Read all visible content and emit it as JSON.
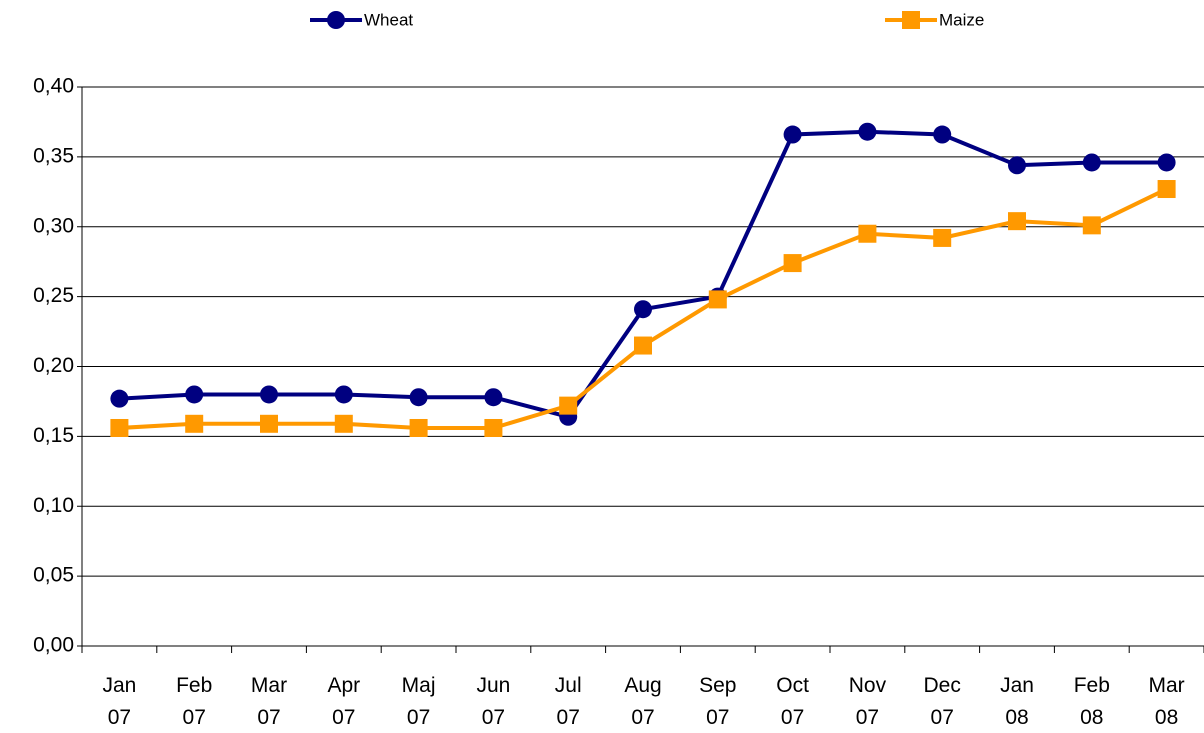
{
  "chart_data": {
    "type": "line",
    "categories": [
      "Jan 07",
      "Feb 07",
      "Mar 07",
      "Apr 07",
      "Maj 07",
      "Jun 07",
      "Jul 07",
      "Aug 07",
      "Sep 07",
      "Oct 07",
      "Nov 07",
      "Dec 07",
      "Jan 08",
      "Feb 08",
      "Mar 08"
    ],
    "series": [
      {
        "name": "Wheat",
        "color": "#000080",
        "marker": "circle",
        "values": [
          0.177,
          0.18,
          0.18,
          0.18,
          0.178,
          0.178,
          0.164,
          0.241,
          0.25,
          0.366,
          0.368,
          0.366,
          0.344,
          0.346,
          0.346
        ]
      },
      {
        "name": "Maize",
        "color": "#ff9900",
        "marker": "square",
        "values": [
          0.156,
          0.159,
          0.159,
          0.159,
          0.156,
          0.156,
          0.172,
          0.215,
          0.248,
          0.274,
          0.295,
          0.292,
          0.304,
          0.301,
          0.327
        ]
      }
    ],
    "ylim": [
      0,
      0.4
    ],
    "yticks": [
      {
        "value": 0,
        "label": "0,00"
      },
      {
        "value": 0.05,
        "label": "0,05"
      },
      {
        "value": 0.1,
        "label": "0,10"
      },
      {
        "value": 0.15,
        "label": "0,15"
      },
      {
        "value": 0.2,
        "label": "0,20"
      },
      {
        "value": 0.25,
        "label": "0,25"
      },
      {
        "value": 0.3,
        "label": "0,30"
      },
      {
        "value": 0.35,
        "label": "0,35"
      },
      {
        "value": 0.4,
        "label": "0,40"
      }
    ],
    "grid": true,
    "legend": "top"
  }
}
